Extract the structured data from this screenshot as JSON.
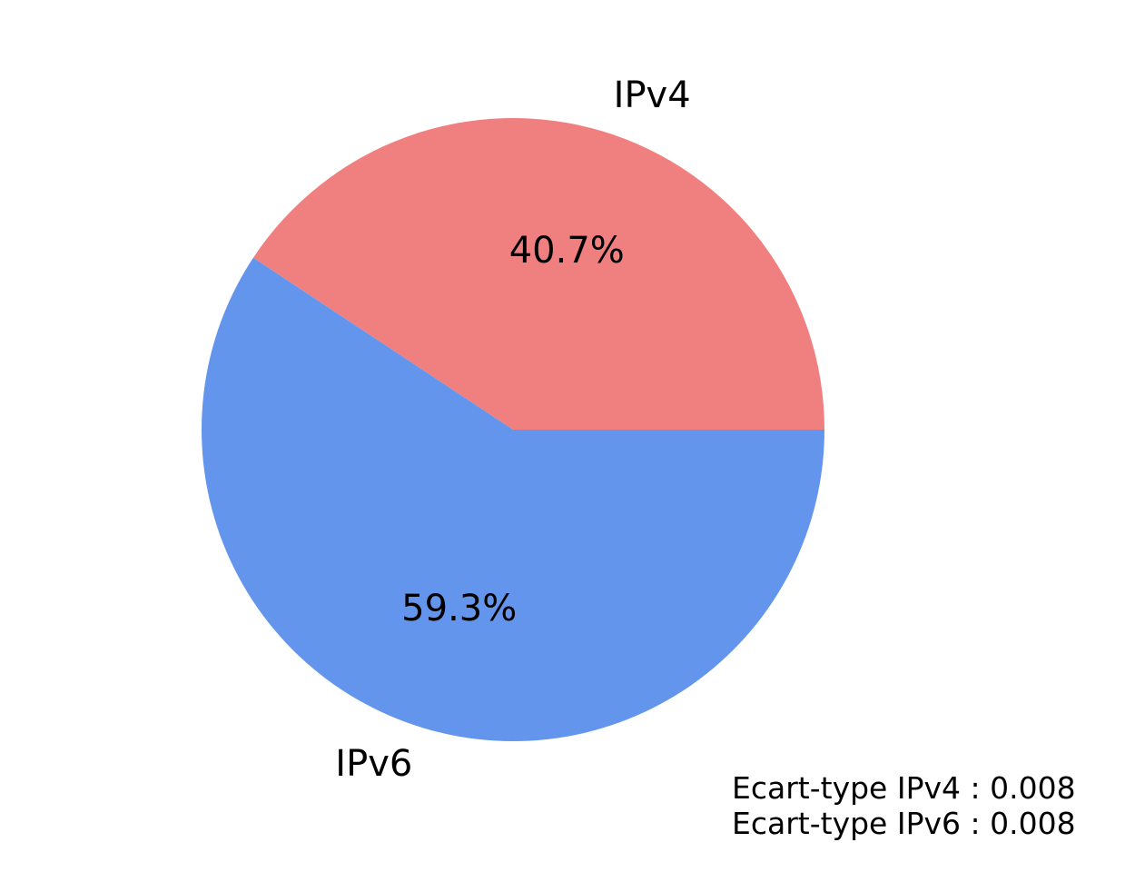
{
  "chart_data": {
    "type": "pie",
    "title": "",
    "slices": [
      {
        "label": "IPv4",
        "value": 40.7,
        "percent_label": "40.7%",
        "color": "#F08080"
      },
      {
        "label": "IPv6",
        "value": 59.3,
        "percent_label": "59.3%",
        "color": "#6495ED"
      }
    ],
    "start_angle_deg": 0,
    "direction": "counterclockwise",
    "annotations": [
      "Ecart-type IPv4 : 0.008",
      "Ecart-type IPv6 : 0.008"
    ]
  }
}
